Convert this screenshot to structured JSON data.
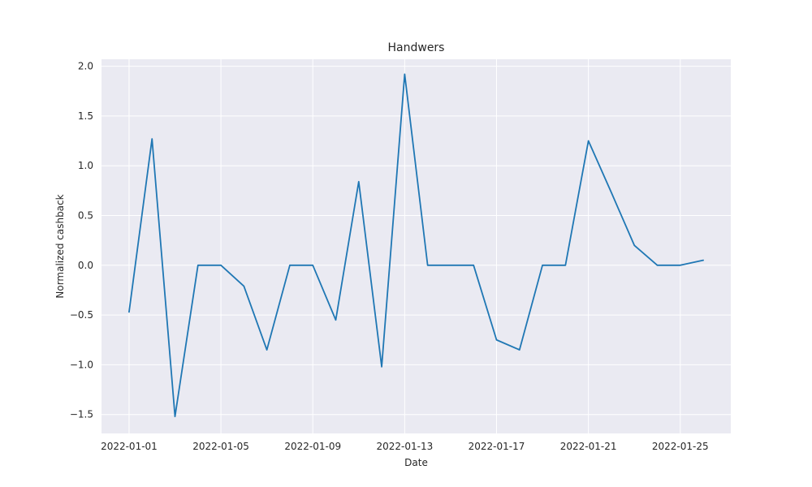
{
  "chart_data": {
    "type": "line",
    "title": "Handwers",
    "xlabel": "Date",
    "ylabel": "Normalized cashback",
    "x_tick_labels": [
      "2022-01-01",
      "2022-01-05",
      "2022-01-09",
      "2022-01-13",
      "2022-01-17",
      "2022-01-21",
      "2022-01-25"
    ],
    "y_tick_values": [
      -1.5,
      -1.0,
      -0.5,
      0.0,
      0.5,
      1.0,
      1.5,
      2.0
    ],
    "y_tick_labels": [
      "−1.5",
      "−1.0",
      "−0.5",
      "0.0",
      "0.5",
      "1.0",
      "1.5",
      "2.0"
    ],
    "xlim": [
      "2021-12-30T19:12",
      "2022-01-27T04:48"
    ],
    "ylim": [
      -1.69,
      2.07
    ],
    "grid": true,
    "background_color": "#eaeaf2",
    "grid_color": "#ffffff",
    "series": [
      {
        "color": "#1f77b4",
        "x": [
          "2022-01-01",
          "2022-01-02",
          "2022-01-03",
          "2022-01-04",
          "2022-01-05",
          "2022-01-06",
          "2022-01-07",
          "2022-01-08",
          "2022-01-09",
          "2022-01-10",
          "2022-01-11",
          "2022-01-12",
          "2022-01-13",
          "2022-01-14",
          "2022-01-15",
          "2022-01-16",
          "2022-01-17",
          "2022-01-18",
          "2022-01-19",
          "2022-01-20",
          "2022-01-21",
          "2022-01-22",
          "2022-01-23",
          "2022-01-24",
          "2022-01-25",
          "2022-01-26"
        ],
        "y": [
          -0.47,
          1.27,
          -1.52,
          0.0,
          0.0,
          -0.21,
          -0.85,
          0.0,
          0.0,
          -0.55,
          0.84,
          -1.02,
          1.92,
          0.0,
          0.0,
          0.0,
          -0.75,
          -0.85,
          0.0,
          0.0,
          1.25,
          0.73,
          0.2,
          0.0,
          0.0,
          0.05
        ]
      }
    ]
  }
}
